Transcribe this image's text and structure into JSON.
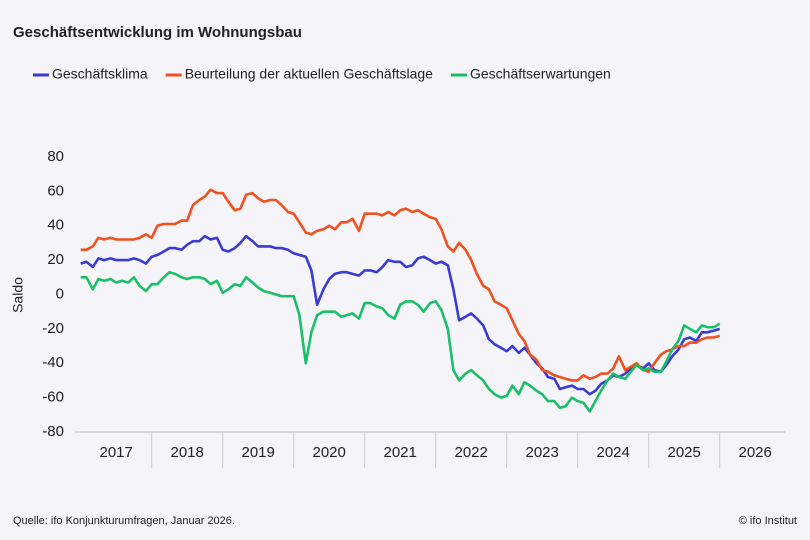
{
  "chart_data": {
    "type": "line",
    "title": "Geschäftsentwicklung im Wohnungsbau",
    "y_label": "Saldo",
    "source": "Quelle: ifo Konjunkturumfragen,  Januar 2026.",
    "copyright": "© ifo Institut",
    "x": [
      2017.0,
      2017.08,
      2017.17,
      2017.25,
      2017.33,
      2017.42,
      2017.5,
      2017.58,
      2017.67,
      2017.75,
      2017.83,
      2017.92,
      2018.0,
      2018.08,
      2018.17,
      2018.25,
      2018.33,
      2018.42,
      2018.5,
      2018.58,
      2018.67,
      2018.75,
      2018.83,
      2018.92,
      2019.0,
      2019.08,
      2019.17,
      2019.25,
      2019.33,
      2019.42,
      2019.5,
      2019.58,
      2019.67,
      2019.75,
      2019.83,
      2019.92,
      2020.0,
      2020.08,
      2020.17,
      2020.25,
      2020.33,
      2020.42,
      2020.5,
      2020.58,
      2020.67,
      2020.75,
      2020.83,
      2020.92,
      2021.0,
      2021.08,
      2021.17,
      2021.25,
      2021.33,
      2021.42,
      2021.5,
      2021.58,
      2021.67,
      2021.75,
      2021.83,
      2021.92,
      2022.0,
      2022.08,
      2022.17,
      2022.25,
      2022.33,
      2022.42,
      2022.5,
      2022.58,
      2022.67,
      2022.75,
      2022.83,
      2022.92,
      2023.0,
      2023.08,
      2023.17,
      2023.25,
      2023.33,
      2023.42,
      2023.5,
      2023.58,
      2023.67,
      2023.75,
      2023.83,
      2023.92,
      2024.0,
      2024.08,
      2024.17,
      2024.25,
      2024.33,
      2024.42,
      2024.5,
      2024.58,
      2024.67,
      2024.75,
      2024.83,
      2024.92,
      2025.0,
      2025.08,
      2025.17,
      2025.25,
      2025.33,
      2025.42,
      2025.5,
      2025.58,
      2025.67,
      2025.75,
      2025.83,
      2025.92,
      2026.0
    ],
    "series": [
      {
        "name": "Geschäftsklima",
        "color": "#3b3bd4",
        "values": [
          18,
          19,
          16,
          21,
          20,
          21,
          20,
          20,
          20,
          21,
          20,
          18,
          22,
          23,
          25,
          27,
          27,
          26,
          29,
          31,
          31,
          34,
          32,
          33,
          26,
          25,
          27,
          30,
          34,
          31,
          28,
          28,
          28,
          27,
          27,
          26,
          24,
          23,
          22,
          14,
          -6,
          3,
          9,
          12,
          13,
          13,
          12,
          11,
          14,
          14,
          13,
          16,
          20,
          19,
          19,
          16,
          17,
          21,
          22,
          20,
          18,
          19,
          17,
          3,
          -15,
          -13,
          -11,
          -14,
          -18,
          -26,
          -29,
          -31,
          -33,
          -30,
          -34,
          -31,
          -35,
          -40,
          -43,
          -48,
          -49,
          -55,
          -54,
          -53,
          -55,
          -55,
          -58,
          -56,
          -52,
          -50,
          -47,
          -48,
          -46,
          -43,
          -41,
          -43,
          -40,
          -44,
          -45,
          -41,
          -36,
          -32,
          -26,
          -25,
          -27,
          -22,
          -22,
          -21,
          -20
        ]
      },
      {
        "name": "Beurteilung der aktuellen Geschäftslage",
        "color": "#f0511f",
        "values": [
          26,
          26,
          28,
          33,
          32,
          33,
          32,
          32,
          32,
          32,
          33,
          35,
          33,
          40,
          41,
          41,
          41,
          43,
          43,
          52,
          55,
          57,
          61,
          59,
          59,
          54,
          49,
          50,
          58,
          59,
          56,
          54,
          55,
          55,
          52,
          48,
          47,
          42,
          36,
          35,
          37,
          38,
          40,
          38,
          42,
          42,
          44,
          37,
          47,
          47,
          47,
          46,
          48,
          46,
          49,
          50,
          48,
          49,
          47,
          45,
          44,
          38,
          28,
          25,
          30,
          26,
          20,
          12,
          5,
          3,
          -4,
          -6,
          -8,
          -15,
          -23,
          -27,
          -35,
          -38,
          -44,
          -45,
          -47,
          -48,
          -49,
          -50,
          -50,
          -47,
          -49,
          -48,
          -46,
          -46,
          -43,
          -36,
          -44,
          -42,
          -40,
          -44,
          -45,
          -40,
          -35,
          -33,
          -32,
          -30,
          -30,
          -28,
          -28,
          -26,
          -25,
          -25,
          -24
        ]
      },
      {
        "name": "Geschäftserwartungen",
        "color": "#1cbf69",
        "values": [
          10,
          10,
          3,
          9,
          8,
          9,
          7,
          8,
          7,
          10,
          5,
          2,
          6,
          6,
          10,
          13,
          12,
          10,
          9,
          10,
          10,
          9,
          6,
          8,
          1,
          3,
          6,
          5,
          10,
          7,
          4,
          2,
          1,
          0,
          -1,
          -1,
          -1,
          -12,
          -40,
          -22,
          -12,
          -10,
          -10,
          -10,
          -13,
          -12,
          -11,
          -14,
          -5,
          -5,
          -7,
          -8,
          -12,
          -14,
          -6,
          -4,
          -4,
          -6,
          -10,
          -5,
          -4,
          -9,
          -20,
          -44,
          -50,
          -46,
          -44,
          -47,
          -50,
          -55,
          -58,
          -60,
          -59,
          -53,
          -58,
          -51,
          -53,
          -56,
          -58,
          -62,
          -62,
          -66,
          -65,
          -60,
          -62,
          -63,
          -68,
          -62,
          -56,
          -50,
          -46,
          -48,
          -49,
          -45,
          -41,
          -44,
          -43,
          -45,
          -45,
          -39,
          -32,
          -27,
          -18,
          -20,
          -22,
          -18,
          -19,
          -19,
          -17
        ]
      }
    ],
    "xlim": [
      2016.92,
      2026.92
    ],
    "xticks": [
      {
        "value": 2017.5,
        "label": "2017"
      },
      {
        "value": 2018.5,
        "label": "2018"
      },
      {
        "value": 2019.5,
        "label": "2019"
      },
      {
        "value": 2020.5,
        "label": "2020"
      },
      {
        "value": 2021.5,
        "label": "2021"
      },
      {
        "value": 2022.5,
        "label": "2022"
      },
      {
        "value": 2023.5,
        "label": "2023"
      },
      {
        "value": 2024.5,
        "label": "2024"
      },
      {
        "value": 2025.5,
        "label": "2025"
      },
      {
        "value": 2026.5,
        "label": "2026"
      }
    ],
    "ylim": [
      -80,
      80
    ],
    "yticks": [
      -80,
      -60,
      -40,
      -20,
      0,
      20,
      40,
      60,
      80
    ],
    "legend": "top-left",
    "grid": false
  }
}
